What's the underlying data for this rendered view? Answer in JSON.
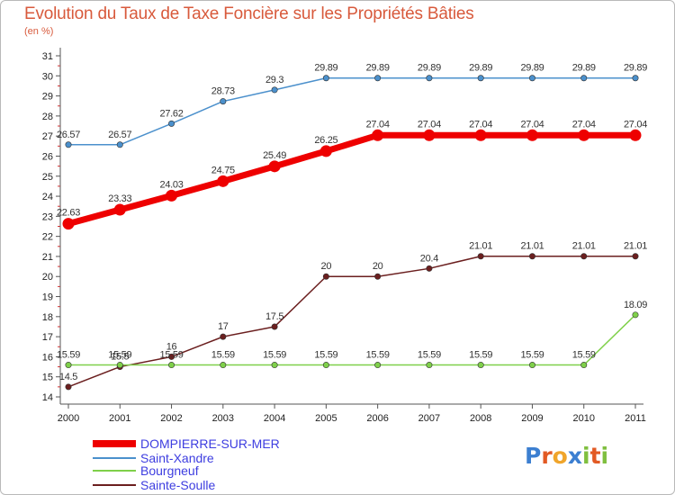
{
  "chart_data": {
    "type": "line",
    "title": "Evolution du Taux de Taxe Foncière sur les Propriétés Bâties",
    "subtitle": "(en %)",
    "x": [
      "2000",
      "2001",
      "2002",
      "2003",
      "2004",
      "2005",
      "2006",
      "2007",
      "2008",
      "2009",
      "2010",
      "2011"
    ],
    "ylim": [
      14,
      31
    ],
    "yticks": [
      14,
      15,
      16,
      17,
      18,
      19,
      20,
      21,
      22,
      23,
      24,
      25,
      26,
      27,
      28,
      29,
      30,
      31
    ],
    "grid": false,
    "legend_position": "bottom-left",
    "series": [
      {
        "name": "DOMPIERRE-SUR-MER",
        "color": "#ee0000",
        "values": [
          22.63,
          23.33,
          24.03,
          24.75,
          25.49,
          26.25,
          27.04,
          27.04,
          27.04,
          27.04,
          27.04,
          27.04
        ],
        "labels": [
          "22.63",
          "23.33",
          "24.03",
          "24.75",
          "25.49",
          "26.25",
          "27.04",
          "27.04",
          "27.04",
          "27.04",
          "27.04",
          "27.04"
        ]
      },
      {
        "name": "Saint-Xandre",
        "color": "#4b90cc",
        "values": [
          26.57,
          26.57,
          27.62,
          28.73,
          29.3,
          29.89,
          29.89,
          29.89,
          29.89,
          29.89,
          29.89,
          29.89
        ],
        "labels": [
          "26.57",
          "26.57",
          "27.62",
          "28.73",
          "29.3",
          "29.89",
          "29.89",
          "29.89",
          "29.89",
          "29.89",
          "29.89",
          "29.89"
        ]
      },
      {
        "name": "Bourgneuf",
        "color": "#7fd04a",
        "values": [
          15.59,
          15.59,
          15.59,
          15.59,
          15.59,
          15.59,
          15.59,
          15.59,
          15.59,
          15.59,
          15.59,
          18.09
        ],
        "labels": [
          "15.59",
          "15.59",
          "15.59",
          "15.59",
          "15.59",
          "15.59",
          "15.59",
          "15.59",
          "15.59",
          "15.59",
          "15.59",
          "18.09"
        ]
      },
      {
        "name": "Sainte-Soulle",
        "color": "#6b1f1f",
        "values": [
          14.5,
          15.5,
          16,
          17,
          17.5,
          20,
          20,
          20.4,
          21.01,
          21.01,
          21.01,
          21.01
        ],
        "labels": [
          "14.5",
          "15.5",
          "16",
          "17",
          "17.5",
          "20",
          "20",
          "20.4",
          "21.01",
          "21.01",
          "21.01",
          "21.01"
        ]
      }
    ]
  },
  "logo": {
    "letters": [
      "P",
      "r",
      "o",
      "x",
      "i",
      "t",
      "i"
    ],
    "colors": [
      "#3c7fd1",
      "#e25a24",
      "#f0a52b",
      "#3c7fd1",
      "#7fbf3f",
      "#e25a24",
      "#7fbf3f"
    ]
  }
}
